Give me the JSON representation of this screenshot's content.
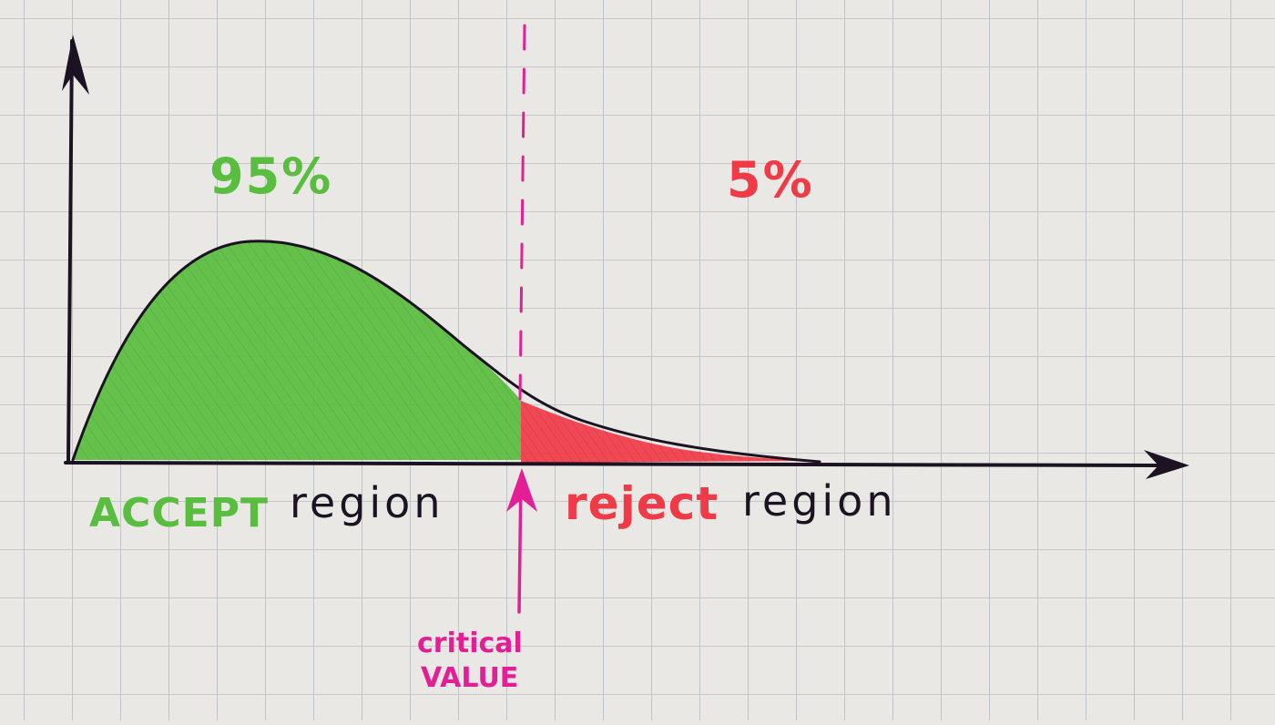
{
  "colors": {
    "paper": "#e9e8e4",
    "grid": "#b9bcc0",
    "ink": "#1b1322",
    "accept_green": "#59bd3f",
    "reject_red": "#f03a48",
    "critical_magenta": "#e21f95"
  },
  "labels": {
    "accept_percent": "95%",
    "reject_percent": "5%",
    "accept_word": "ACCEPT",
    "accept_region_word": "region",
    "reject_word": "reject",
    "reject_region_word": "region",
    "critical_line1": "critical",
    "critical_line2": "VALUE"
  },
  "regions": {
    "accept_share_percent": 95,
    "reject_share_percent": 5
  }
}
